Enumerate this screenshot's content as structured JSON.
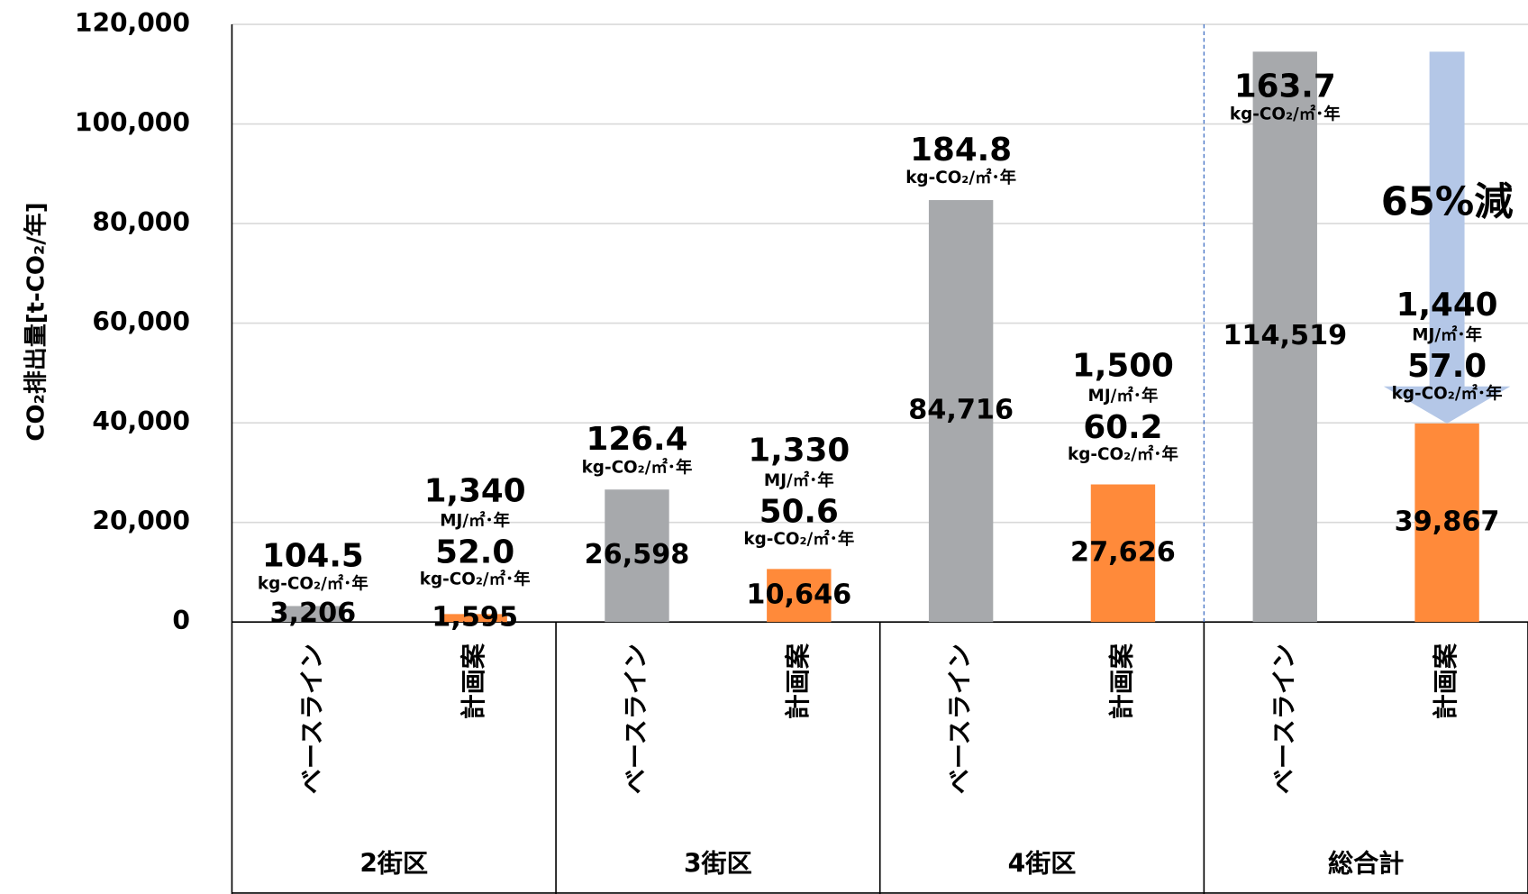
{
  "chart_data": {
    "type": "bar",
    "y_label": "CO₂排出量[t-CO₂/年]",
    "categories": [
      "2街区",
      "3街区",
      "4街区",
      "総合計"
    ],
    "co2_unit": "kg-CO₂/㎡･年",
    "energy_unit": "MJ/㎡･年",
    "series": [
      {
        "name": "ベースライン",
        "color": "#a7a9ac",
        "values": [
          3206,
          26598,
          84716,
          114519
        ],
        "value_labels": [
          "3,206",
          "26,598",
          "84,716",
          "114,519"
        ],
        "co2_intensity": {
          "values": [
            104.5,
            126.4,
            184.8,
            163.7
          ],
          "value_labels": [
            "104.5",
            "126.4",
            "184.8",
            "163.7"
          ]
        }
      },
      {
        "name": "計画案",
        "color": "#ff8a3a",
        "values": [
          1595,
          10646,
          27626,
          39867
        ],
        "value_labels": [
          "1,595",
          "10,646",
          "27,626",
          "39,867"
        ],
        "co2_intensity": {
          "values": [
            52.0,
            50.6,
            60.2,
            57.0
          ],
          "value_labels": [
            "52.0",
            "50.6",
            "60.2",
            "57.0"
          ]
        },
        "energy_intensity": {
          "values": [
            1340,
            1330,
            1500,
            1440
          ],
          "value_labels": [
            "1,340",
            "1,330",
            "1,500",
            "1,440"
          ]
        }
      }
    ],
    "annotation": "65%減",
    "ylim": [
      0,
      120000
    ],
    "yticks": [
      0,
      {
        "value": 20000,
        "label": "20,000"
      },
      {
        "value": 40000,
        "label": "40,000"
      },
      {
        "value": 60000,
        "label": "60,000"
      },
      {
        "value": 80000,
        "label": "80,000"
      },
      {
        "value": 100000,
        "label": "100,000"
      },
      {
        "value": 120000,
        "label": "120,000"
      }
    ],
    "grid": true
  }
}
